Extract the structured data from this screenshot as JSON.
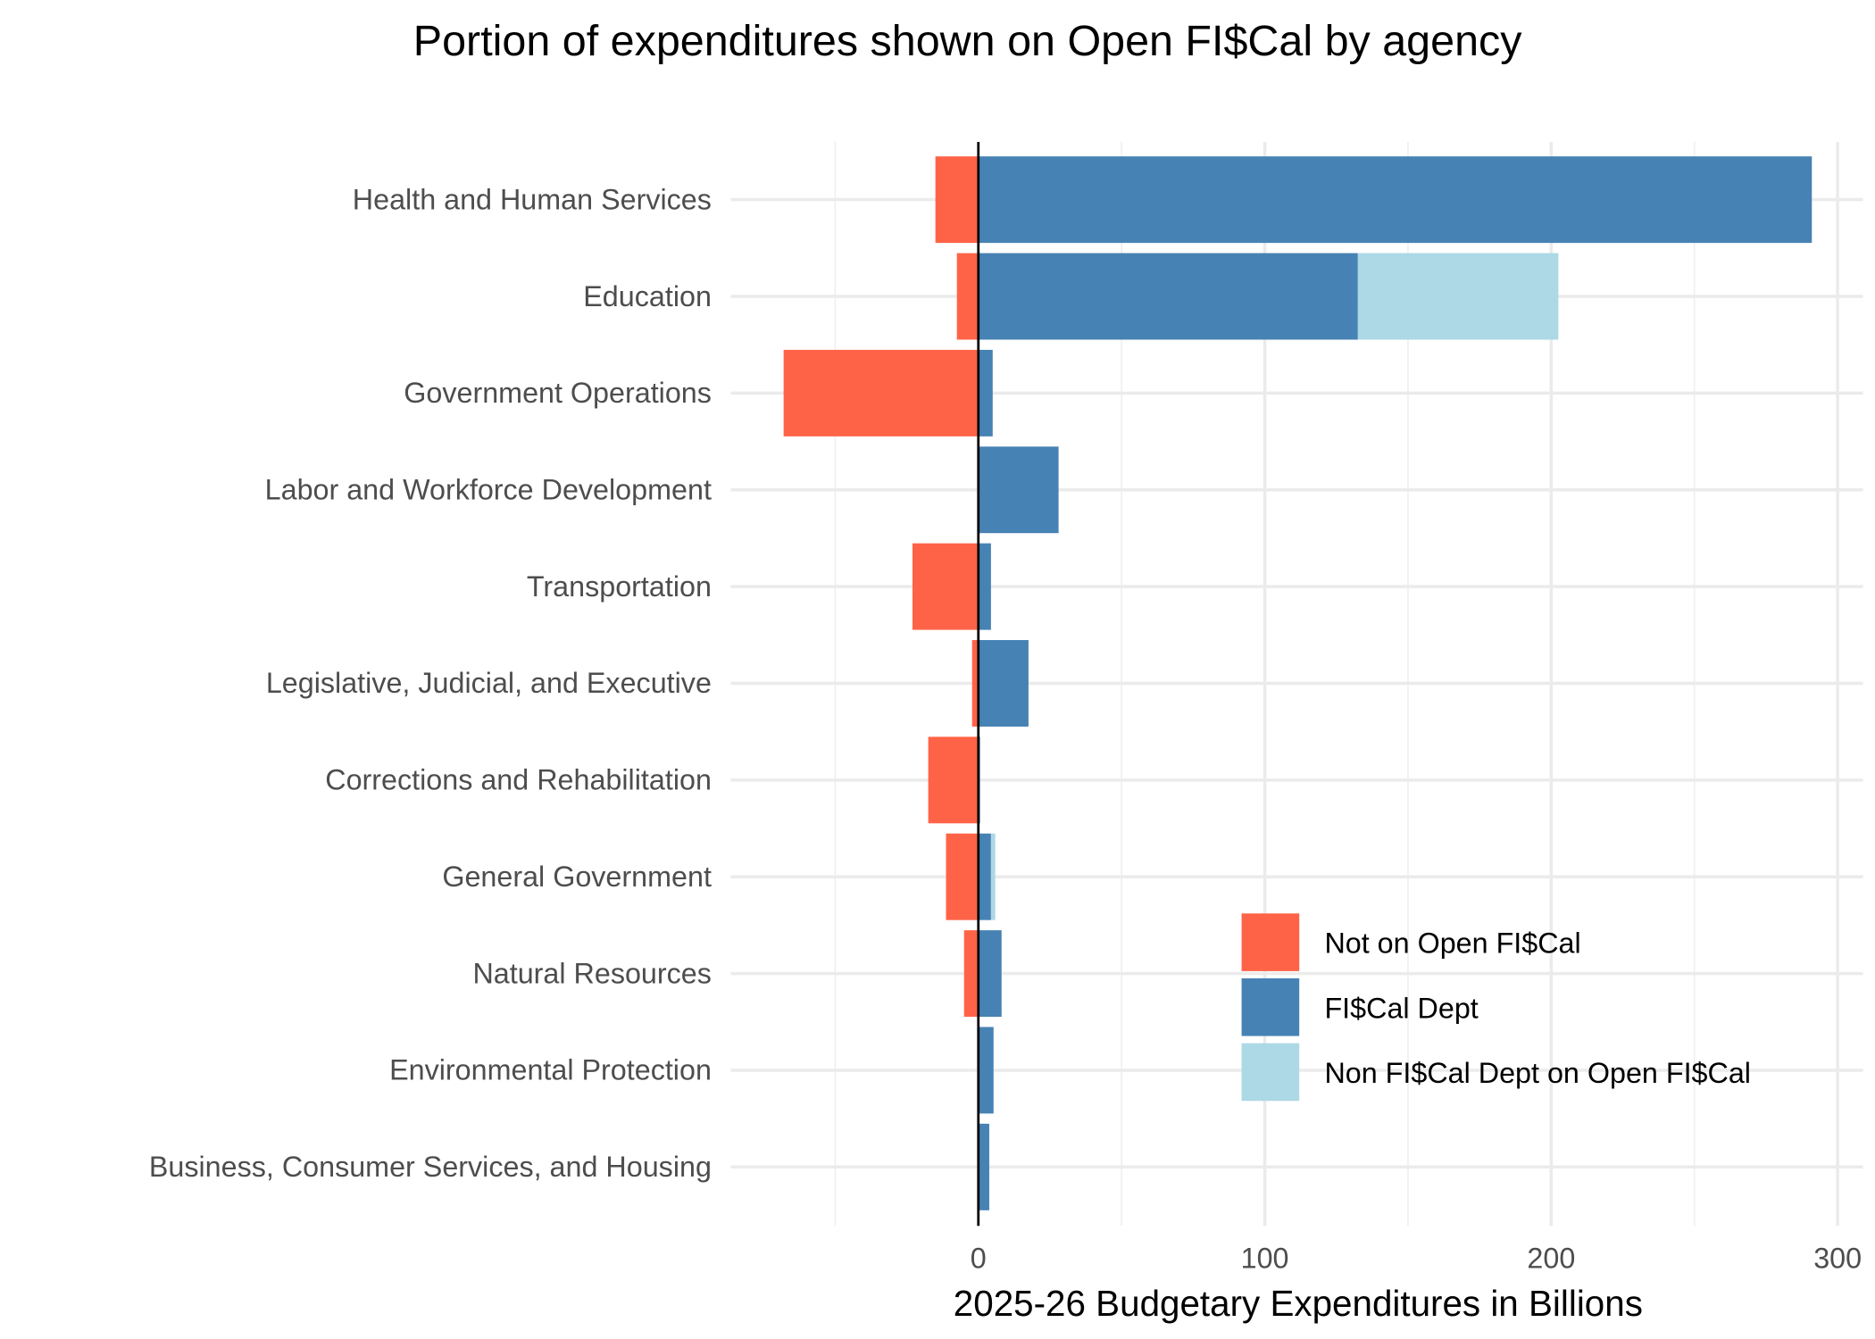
{
  "chart_data": {
    "type": "bar",
    "orientation": "horizontal",
    "stacked": true,
    "title": "Portion of expenditures shown on Open FI$Cal by agency",
    "xlabel": "2025-26 Budgetary Expenditures in Billions",
    "ylabel": "",
    "xlim": [
      -70,
      310
    ],
    "xticks": [
      0,
      100,
      200,
      300
    ],
    "grid": true,
    "legend_position": "bottom-right",
    "categories": [
      "Health and Human Services",
      "Education",
      "Government Operations",
      "Labor and Workforce Development",
      "Transportation",
      "Legislative, Judicial, and Executive",
      "Corrections and Rehabilitation",
      "General Government",
      "Natural Resources",
      "Environmental Protection",
      "Business, Consumer Services, and Housing"
    ],
    "series": [
      {
        "name": "Not on Open FI$Cal",
        "color": "#FF6347",
        "values": [
          -15,
          -7.5,
          -68,
          0,
          -23,
          -2.2,
          -17.5,
          -11.3,
          -5,
          0,
          0
        ]
      },
      {
        "name": "FI$Cal Dept",
        "color": "#4682B4",
        "values": [
          291,
          132.5,
          5,
          28,
          4.4,
          17.5,
          0.6,
          4.4,
          8.1,
          5.3,
          3.8
        ]
      },
      {
        "name": "Non FI$Cal Dept on Open FI$Cal",
        "color": "#ADD8E6",
        "values": [
          0,
          70,
          0,
          0,
          0,
          0,
          0,
          1.5,
          0,
          0,
          0
        ]
      }
    ]
  }
}
